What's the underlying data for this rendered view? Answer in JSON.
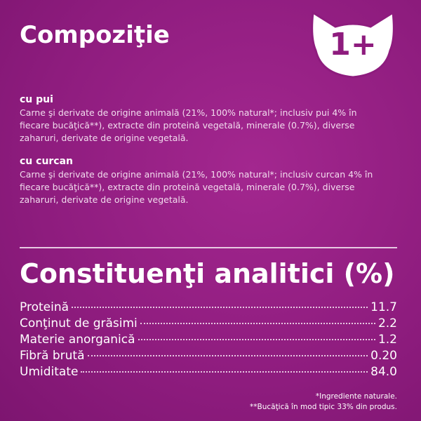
{
  "header": {
    "title": "Compoziţie",
    "badge": "1+"
  },
  "sections": [
    {
      "heading": "cu pui",
      "text": "Carne şi derivate de origine animală (21%, 100% natural*; inclusiv pui 4% în fiecare bucăţică**), extracte din proteină vegetală, minerale (0.7%), diverse zaharuri, derivate de origine vegetală."
    },
    {
      "heading": "cu curcan",
      "text": "Carne şi derivate de origine animală (21%, 100% natural*; inclusiv curcan 4% în fiecare bucăţică**), extracte din proteină vegetală, minerale (0.7%), diverse zaharuri, derivate de origine vegetală."
    }
  ],
  "analysis": {
    "title": "Constituenţi analitici (%)",
    "rows": [
      {
        "label": "Proteină",
        "value": "11.7"
      },
      {
        "label": "Conţinut de grăsimi",
        "value": "2.2"
      },
      {
        "label": "Materie anorganică",
        "value": "1.2"
      },
      {
        "label": "Fibră brută",
        "value": "0.20"
      },
      {
        "label": "Umiditate",
        "value": "84.0"
      }
    ]
  },
  "footnotes": [
    "*Ingrediente naturale.",
    "**Bucăţică în mod tipic 33% din produs."
  ]
}
